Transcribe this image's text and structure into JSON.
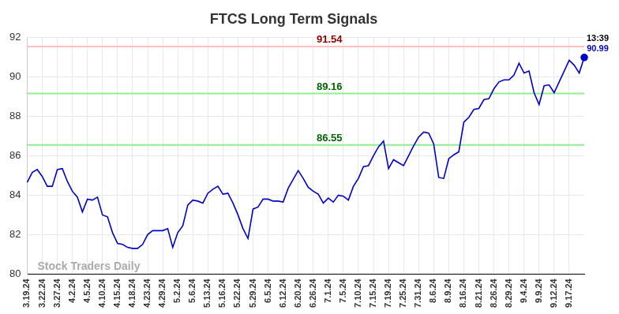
{
  "chart_data": {
    "type": "line",
    "title": "FTCS Long Term Signals",
    "categories": [
      "3.19.24",
      null,
      null,
      "3.22.24",
      null,
      null,
      "3.27.24",
      null,
      null,
      "4.2.24",
      null,
      null,
      "4.5.24",
      null,
      null,
      "4.10.24",
      null,
      null,
      "4.15.24",
      null,
      null,
      "4.18.24",
      null,
      null,
      "4.23.24",
      null,
      null,
      "4.29.24",
      null,
      null,
      "5.2.24",
      null,
      null,
      "5.6.24",
      null,
      null,
      "5.13.24",
      null,
      null,
      "5.16.24",
      null,
      null,
      "5.22.24",
      null,
      null,
      "5.29.24",
      null,
      null,
      "6.5.24",
      null,
      null,
      "6.12.24",
      null,
      null,
      "6.20.24",
      null,
      null,
      "6.26.24",
      null,
      null,
      "7.1.24",
      null,
      null,
      "7.5.24",
      null,
      null,
      "7.10.24",
      null,
      null,
      "7.15.24",
      null,
      null,
      "7.19.24",
      null,
      null,
      "7.25.24",
      null,
      null,
      "7.31.24",
      null,
      null,
      "8.6.24",
      null,
      null,
      "8.9.24",
      null,
      null,
      "8.16.24",
      null,
      null,
      "8.21.24",
      null,
      null,
      "8.26.24",
      null,
      null,
      "8.29.24",
      null,
      null,
      "9.4.24",
      null,
      null,
      "9.9.24",
      null,
      null,
      "9.12.24",
      null,
      null,
      "9.17.24",
      null,
      null,
      null
    ],
    "values": [
      84.65,
      85.15,
      85.3,
      84.95,
      84.45,
      84.45,
      85.3,
      85.35,
      84.7,
      84.2,
      83.9,
      83.15,
      83.8,
      83.75,
      83.9,
      83.0,
      82.9,
      82.1,
      81.55,
      81.5,
      81.35,
      81.3,
      81.3,
      81.5,
      82.0,
      82.2,
      82.2,
      82.2,
      82.3,
      81.35,
      82.1,
      82.45,
      83.5,
      83.75,
      83.7,
      83.6,
      84.1,
      84.3,
      84.45,
      84.05,
      84.1,
      83.6,
      83.0,
      82.3,
      81.8,
      83.3,
      83.4,
      83.8,
      83.8,
      83.7,
      83.7,
      83.65,
      84.35,
      84.8,
      85.25,
      84.85,
      84.4,
      84.2,
      84.05,
      83.6,
      83.85,
      83.65,
      84.0,
      83.95,
      83.75,
      84.45,
      84.85,
      85.45,
      85.5,
      86.0,
      86.45,
      86.75,
      85.35,
      85.8,
      85.65,
      85.5,
      86.0,
      86.5,
      86.95,
      87.2,
      87.15,
      86.6,
      84.9,
      84.85,
      85.85,
      86.05,
      86.2,
      87.7,
      87.95,
      88.35,
      88.4,
      88.85,
      88.9,
      89.4,
      89.75,
      89.85,
      89.85,
      90.1,
      90.7,
      90.2,
      90.3,
      89.2,
      88.6,
      89.55,
      89.6,
      89.2,
      89.75,
      90.3,
      90.85,
      90.6,
      90.2,
      90.99
    ],
    "color": "#0000cc",
    "ylim": [
      80,
      92
    ],
    "yticks": [
      80,
      82,
      84,
      86,
      88,
      90,
      92
    ],
    "grid": true,
    "reference_lines": [
      {
        "value": 91.54,
        "label": "91.54",
        "color": "#ffc0c0",
        "label_color": "#8b0000"
      },
      {
        "value": 89.16,
        "label": "89.16",
        "color": "#90ee90",
        "label_color": "#006400"
      },
      {
        "value": 86.55,
        "label": "86.55",
        "color": "#90ee90",
        "label_color": "#006400"
      }
    ],
    "last_point_label": {
      "time": "13:39",
      "value": 90.99,
      "label": "90.99"
    },
    "watermark": "Stock Traders Daily"
  }
}
